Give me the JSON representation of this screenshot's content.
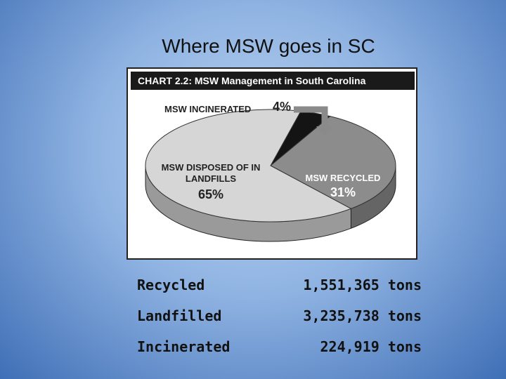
{
  "title": "Where MSW goes in SC",
  "chart_data": {
    "type": "pie",
    "title": "CHART 2.2: MSW Management in South Carolina",
    "categories": [
      "MSW INCINERATED",
      "MSW RECYCLED",
      "MSW DISPOSED OF IN LANDFILLS"
    ],
    "values": [
      4,
      31,
      65
    ],
    "value_labels": [
      "4%",
      "31%",
      "65%"
    ],
    "colors": [
      "#141414",
      "#8c8c8c",
      "#d6d6d6"
    ]
  },
  "table": {
    "rows": [
      [
        "Recycled",
        "1,551,365 tons"
      ],
      [
        "Landfilled",
        "3,235,738 tons"
      ],
      [
        "Incinerated",
        "224,919 tons"
      ]
    ]
  }
}
